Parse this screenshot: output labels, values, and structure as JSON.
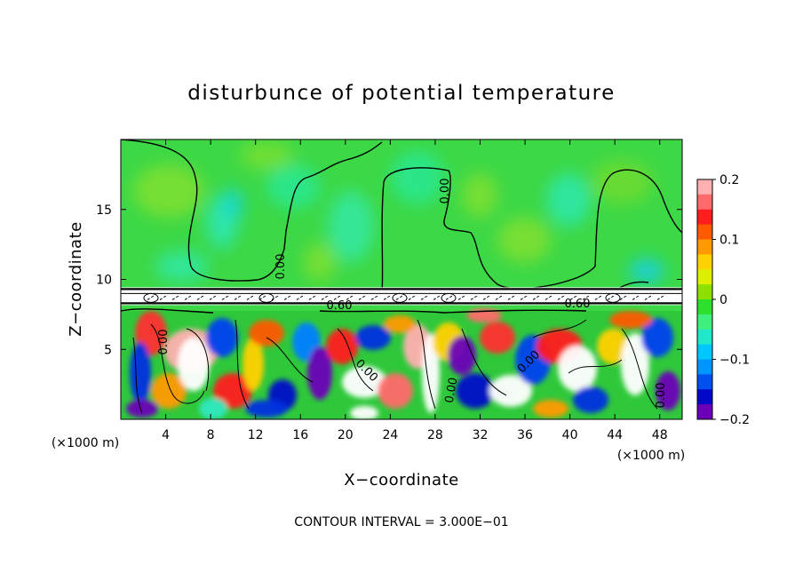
{
  "chart_data": {
    "type": "heatmap",
    "title": "disturbunce of potential temperature",
    "xlabel": "X−coordinate",
    "ylabel": "Z−coordinate",
    "x_unit_left": "(×1000 m)",
    "x_unit_right": "(×1000 m)",
    "footer": "CONTOUR INTERVAL = 3.000E−01",
    "xlim": [
      0,
      50
    ],
    "ylim": [
      0,
      20
    ],
    "x_ticks": [
      4,
      8,
      12,
      16,
      20,
      24,
      28,
      32,
      36,
      40,
      44,
      48
    ],
    "y_ticks": [
      5,
      10,
      15
    ],
    "colorbar": {
      "range": [
        -0.2,
        0.2
      ],
      "ticks": [
        0.2,
        0.1,
        0,
        -0.1,
        -0.2
      ],
      "tick_labels": [
        "0.2",
        "0.1",
        "0",
        "−0.1",
        "−0.2"
      ],
      "colors": [
        "#ffb0b0",
        "#ff6a6a",
        "#ff1e1e",
        "#ff5a00",
        "#ff9a00",
        "#ffd200",
        "#dcf000",
        "#8ee000",
        "#2ee02e",
        "#3ff07e",
        "#20e8c8",
        "#00c8ff",
        "#0096ff",
        "#0050f0",
        "#0008c8",
        "#6c00b8"
      ]
    },
    "contour_labels": [
      "0.00",
      "0.00",
      "0.00",
      "0.60",
      "0.60",
      "0.00",
      "0.00",
      "0.00",
      "0.00"
    ],
    "inversion_height": 8.8
  }
}
